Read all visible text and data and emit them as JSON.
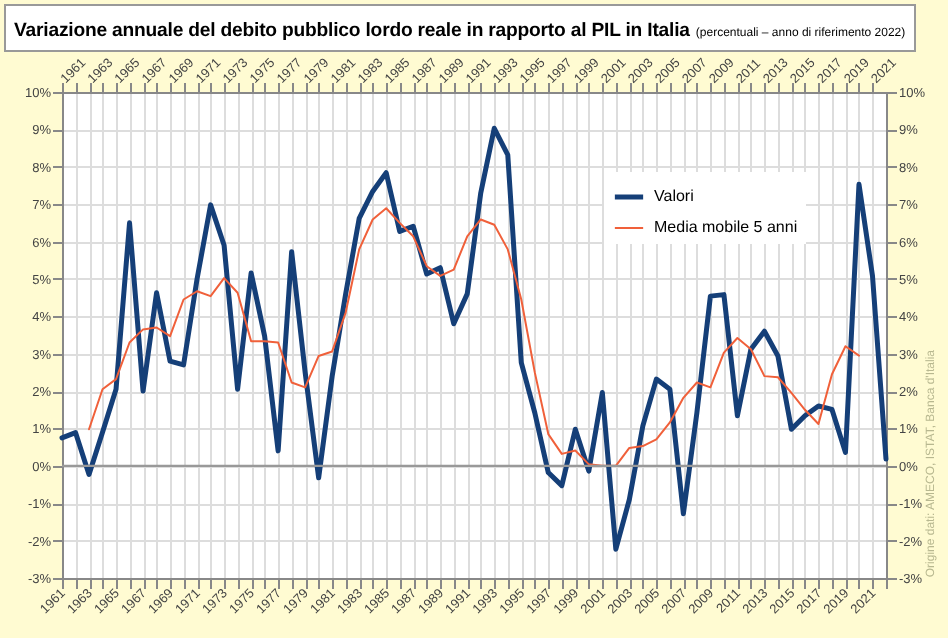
{
  "chart_data": {
    "type": "line",
    "title": "Variazione annuale del debito pubblico lordo reale in rapporto al PIL in Italia",
    "subtitle": "(percentuali – anno di riferimento 2022)",
    "annotations": [
      "Origine dati: AMECO, ISTAT, Banca d'Italia"
    ],
    "x": [
      1961,
      1962,
      1963,
      1964,
      1965,
      1966,
      1967,
      1968,
      1969,
      1970,
      1971,
      1972,
      1973,
      1974,
      1975,
      1976,
      1977,
      1978,
      1979,
      1980,
      1981,
      1982,
      1983,
      1984,
      1985,
      1986,
      1987,
      1988,
      1989,
      1990,
      1991,
      1992,
      1993,
      1994,
      1995,
      1996,
      1997,
      1998,
      1999,
      2000,
      2001,
      2002,
      2003,
      2004,
      2005,
      2006,
      2007,
      2008,
      2009,
      2010,
      2011,
      2012,
      2013,
      2014,
      2015,
      2016,
      2017,
      2018,
      2019,
      2020,
      2021,
      2022
    ],
    "series": [
      {
        "name": "Valori",
        "color": "#153f78",
        "values": [
          0.75,
          0.89,
          -0.23,
          0.9,
          2.05,
          6.5,
          2.0,
          4.63,
          2.8,
          2.7,
          5.0,
          6.98,
          5.9,
          2.05,
          5.16,
          3.47,
          0.4,
          5.73,
          2.5,
          -0.32,
          2.4,
          4.6,
          6.62,
          7.34,
          7.84,
          6.27,
          6.41,
          5.13,
          5.3,
          3.8,
          4.6,
          7.3,
          9.03,
          8.32,
          2.76,
          1.42,
          -0.18,
          -0.53,
          0.98,
          -0.14,
          1.96,
          -2.23,
          -0.9,
          1.07,
          2.32,
          2.05,
          -1.28,
          1.42,
          4.54,
          4.58,
          1.34,
          3.12,
          3.6,
          2.94,
          0.98,
          1.34,
          1.6,
          1.51,
          0.36,
          7.53,
          5.08,
          0.18
        ]
      },
      {
        "name": "Media mobile 5 anni",
        "color": "#f0603a",
        "values": [
          null,
          null,
          0.98,
          2.05,
          2.32,
          3.3,
          3.65,
          3.7,
          3.47,
          4.45,
          4.67,
          4.54,
          5.02,
          4.63,
          3.33,
          3.33,
          3.3,
          2.23,
          2.1,
          2.94,
          3.06,
          4.1,
          5.79,
          6.59,
          6.89,
          6.5,
          6.14,
          5.34,
          5.08,
          5.25,
          6.14,
          6.59,
          6.45,
          5.79,
          4.45,
          2.5,
          0.85,
          0.32,
          0.41,
          0.04,
          0.0,
          0.0,
          0.48,
          0.53,
          0.71,
          1.16,
          1.82,
          2.23,
          2.1,
          3.03,
          3.42,
          3.12,
          2.4,
          2.37,
          1.95,
          1.5,
          1.12,
          2.45,
          3.2,
          2.95,
          null,
          null
        ]
      }
    ],
    "xlim": [
      1961,
      2022
    ],
    "xticks": [
      1961,
      {
        "value": 1962,
        "label": null
      },
      1963,
      {
        "value": 1964,
        "label": null
      },
      1965,
      {
        "value": 1966,
        "label": null
      },
      1967,
      {
        "value": 1968,
        "label": null
      },
      1969,
      {
        "value": 1970,
        "label": null
      },
      1971,
      {
        "value": 1972,
        "label": null
      },
      1973,
      {
        "value": 1974,
        "label": null
      },
      1975,
      {
        "value": 1976,
        "label": null
      },
      1977,
      {
        "value": 1978,
        "label": null
      },
      1979,
      {
        "value": 1980,
        "label": null
      },
      1981,
      {
        "value": 1982,
        "label": null
      },
      1983,
      {
        "value": 1984,
        "label": null
      },
      1985,
      {
        "value": 1986,
        "label": null
      },
      1987,
      {
        "value": 1988,
        "label": null
      },
      1989,
      {
        "value": 1990,
        "label": null
      },
      1991,
      {
        "value": 1992,
        "label": null
      },
      1993,
      {
        "value": 1994,
        "label": null
      },
      1995,
      {
        "value": 1996,
        "label": null
      },
      1997,
      {
        "value": 1998,
        "label": null
      },
      1999,
      {
        "value": 2000,
        "label": null
      },
      2001,
      {
        "value": 2002,
        "label": null
      },
      2003,
      {
        "value": 2004,
        "label": null
      },
      2005,
      {
        "value": 2006,
        "label": null
      },
      2007,
      {
        "value": 2008,
        "label": null
      },
      2009,
      {
        "value": 2010,
        "label": null
      },
      2011,
      {
        "value": 2012,
        "label": null
      },
      2013,
      {
        "value": 2014,
        "label": null
      },
      2015,
      {
        "value": 2016,
        "label": null
      },
      2017,
      {
        "value": 2018,
        "label": null
      },
      2019,
      {
        "value": 2020,
        "label": null
      },
      2021,
      {
        "value": 2022,
        "label": null
      }
    ],
    "x2lim": [
      1961,
      2022
    ],
    "x2ticks": [
      1961,
      {
        "value": 1962,
        "label": null
      },
      1963,
      {
        "value": 1964,
        "label": null
      },
      1965,
      {
        "value": 1966,
        "label": null
      },
      1967,
      {
        "value": 1968,
        "label": null
      },
      1969,
      {
        "value": 1970,
        "label": null
      },
      1971,
      {
        "value": 1972,
        "label": null
      },
      1973,
      {
        "value": 1974,
        "label": null
      },
      1975,
      {
        "value": 1976,
        "label": null
      },
      1977,
      {
        "value": 1978,
        "label": null
      },
      1979,
      {
        "value": 1980,
        "label": null
      },
      1981,
      {
        "value": 1982,
        "label": null
      },
      1983,
      {
        "value": 1984,
        "label": null
      },
      1985,
      {
        "value": 1986,
        "label": null
      },
      1987,
      {
        "value": 1988,
        "label": null
      },
      1989,
      {
        "value": 1990,
        "label": null
      },
      1991,
      {
        "value": 1992,
        "label": null
      },
      1993,
      {
        "value": 1994,
        "label": null
      },
      1995,
      {
        "value": 1996,
        "label": null
      },
      1997,
      {
        "value": 1998,
        "label": null
      },
      1999,
      {
        "value": 2000,
        "label": null
      },
      2001,
      {
        "value": 2002,
        "label": null
      },
      2003,
      {
        "value": 2004,
        "label": null
      },
      2005,
      {
        "value": 2006,
        "label": null
      },
      2007,
      {
        "value": 2008,
        "label": null
      },
      2009,
      {
        "value": 2010,
        "label": null
      },
      2011,
      {
        "value": 2012,
        "label": null
      },
      2013,
      {
        "value": 2014,
        "label": null
      },
      2015,
      {
        "value": 2016,
        "label": null
      },
      2017,
      {
        "value": 2018,
        "label": null
      },
      2019,
      {
        "value": 2020,
        "label": null
      },
      2021
    ],
    "ylim": [
      -3,
      10
    ],
    "yticks": [
      {
        "value": -3,
        "label": "-3%"
      },
      {
        "value": -2,
        "label": "-2%"
      },
      {
        "value": -1,
        "label": "-1%"
      },
      {
        "value": 0,
        "label": "0%"
      },
      {
        "value": 1,
        "label": "1%"
      },
      {
        "value": 2,
        "label": "2%"
      },
      {
        "value": 3,
        "label": "3%"
      },
      {
        "value": 4,
        "label": "4%"
      },
      {
        "value": 5,
        "label": "5%"
      },
      {
        "value": 6,
        "label": "6%"
      },
      {
        "value": 7,
        "label": "7%"
      },
      {
        "value": 8,
        "label": "8%"
      },
      {
        "value": 9,
        "label": "9%"
      },
      {
        "value": 10,
        "label": "10%"
      }
    ],
    "y2lim": [
      -3,
      10
    ],
    "y2ticks": [
      {
        "value": -3,
        "label": "-3%"
      },
      {
        "value": -2,
        "label": "-2%"
      },
      {
        "value": -1,
        "label": "-1%"
      },
      {
        "value": 0,
        "label": "0%"
      },
      {
        "value": 1,
        "label": "1%"
      },
      {
        "value": 2,
        "label": "2%"
      },
      {
        "value": 3,
        "label": "3%"
      },
      {
        "value": 4,
        "label": "4%"
      },
      {
        "value": 5,
        "label": "5%"
      },
      {
        "value": 6,
        "label": "6%"
      },
      {
        "value": 7,
        "label": "7%"
      },
      {
        "value": 8,
        "label": "8%"
      },
      {
        "value": 9,
        "label": "9%"
      },
      {
        "value": 10,
        "label": "10%"
      }
    ],
    "ref_lines": [
      {
        "axis": "y",
        "value": 0,
        "color": "#999999"
      }
    ],
    "grid": true,
    "legend": "top right",
    "marker": "none",
    "line_style": "solid"
  }
}
